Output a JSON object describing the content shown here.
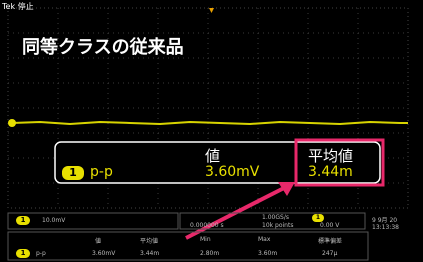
{
  "header": {
    "brand": "Tek",
    "status": "停止"
  },
  "overlay_title": "同等クラスの従来品",
  "measurement_box": {
    "columns": [
      "値",
      "平均値"
    ],
    "channel": "1",
    "measure": "p-p",
    "value": "3.60mV",
    "mean": "3.44m"
  },
  "status_bar": {
    "channel": "1",
    "scale": "10.0mV",
    "trigger_position": "0.000000 s",
    "sample_rate": "1.00GS/s",
    "record_length": "10k points",
    "trigger_channel": "1",
    "trigger_level": "0.00 V",
    "date": "9 9月 20",
    "time": "13:13:38"
  },
  "stats_table": {
    "headers": [
      "値",
      "平均値",
      "Min",
      "Max",
      "標準偏差"
    ],
    "channel": "1",
    "measure": "p-p",
    "values": [
      "3.60mV",
      "3.44m",
      "2.80m",
      "3.60m",
      "247μ"
    ]
  }
}
